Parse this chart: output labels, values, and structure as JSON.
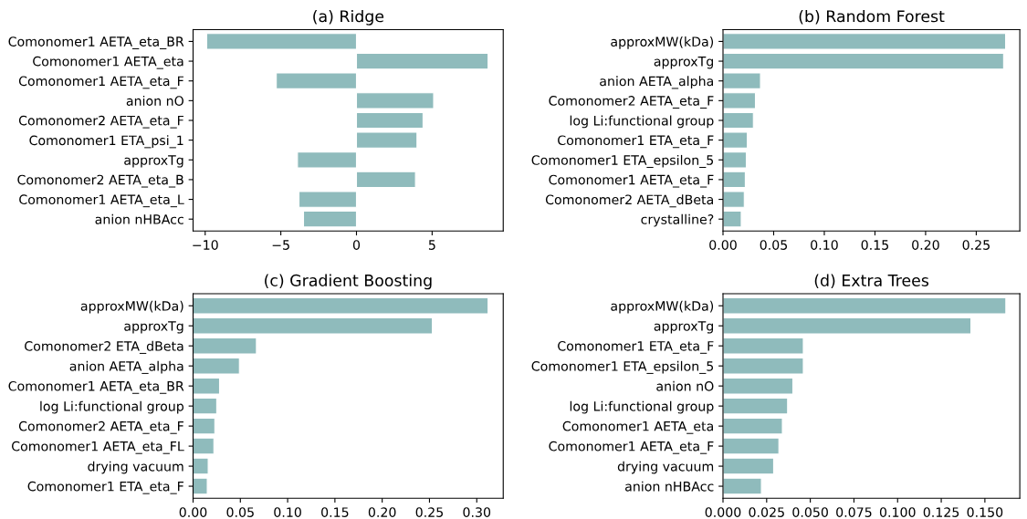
{
  "chart_data": [
    {
      "type": "bar",
      "orientation": "horizontal",
      "title": "(a) Ridge",
      "color": "#8fbbbc",
      "grid": false,
      "categories": [
        "Comonomer1 AETA_eta_BR",
        "Comonomer1 AETA_eta",
        "Comonomer1 AETA_eta_F",
        "anion nO",
        "Comonomer2 AETA_eta_F",
        "Comonomer1 ETA_psi_1",
        "approxTg",
        "Comonomer2 AETA_eta_B",
        "Comonomer1 AETA_eta_L",
        "anion nHBAcc"
      ],
      "values": [
        -9.9,
        8.7,
        -5.3,
        5.1,
        4.4,
        4.0,
        -3.9,
        3.9,
        -3.8,
        -3.5
      ],
      "xlim": [
        -10.8,
        9.7
      ],
      "xticks": [
        {
          "value": -10,
          "label": "−10"
        },
        {
          "value": -5,
          "label": "−5"
        },
        0,
        5
      ]
    },
    {
      "type": "bar",
      "orientation": "horizontal",
      "title": "(b) Random Forest",
      "color": "#8fbbbc",
      "grid": false,
      "categories": [
        "approxMW(kDa)",
        "approxTg",
        "anion AETA_alpha",
        "Comonomer2 AETA_eta_F",
        "log Li:functional group",
        "Comonomer1 ETA_eta_F",
        "Comonomer1 ETA_epsilon_5",
        "Comonomer1 AETA_eta_F",
        "Comonomer2 AETA_dBeta",
        "crystalline?"
      ],
      "values": [
        0.279,
        0.277,
        0.037,
        0.032,
        0.03,
        0.024,
        0.023,
        0.022,
        0.021,
        0.018
      ],
      "xlim": [
        0,
        0.293
      ],
      "xticks": [
        {
          "value": 0,
          "label": "0.00"
        },
        0.05,
        {
          "value": 0.1,
          "label": "0.10"
        },
        0.15,
        {
          "value": 0.2,
          "label": "0.20"
        },
        0.25
      ]
    },
    {
      "type": "bar",
      "orientation": "horizontal",
      "title": "(c) Gradient Boosting",
      "color": "#8fbbbc",
      "grid": false,
      "categories": [
        "approxMW(kDa)",
        "approxTg",
        "Comonomer2 ETA_dBeta",
        "anion AETA_alpha",
        "Comonomer1 AETA_eta_BR",
        "log Li:functional group",
        "Comonomer2 AETA_eta_F",
        "Comonomer1 AETA_eta_FL",
        "drying vacuum",
        "Comonomer1 ETA_eta_F"
      ],
      "values": [
        0.312,
        0.253,
        0.067,
        0.049,
        0.028,
        0.025,
        0.023,
        0.022,
        0.016,
        0.015
      ],
      "xlim": [
        0,
        0.328
      ],
      "xticks": [
        {
          "value": 0,
          "label": "0.00"
        },
        0.05,
        {
          "value": 0.1,
          "label": "0.10"
        },
        0.15,
        {
          "value": 0.2,
          "label": "0.20"
        },
        0.25,
        {
          "value": 0.3,
          "label": "0.30"
        }
      ]
    },
    {
      "type": "bar",
      "orientation": "horizontal",
      "title": "(d) Extra Trees",
      "color": "#8fbbbc",
      "grid": false,
      "categories": [
        "approxMW(kDa)",
        "approxTg",
        "Comonomer1 ETA_eta_F",
        "Comonomer1 ETA_epsilon_5",
        "anion nO",
        "log Li:functional group",
        "Comonomer1 AETA_eta",
        "Comonomer1 AETA_eta_F",
        "drying vacuum",
        "anion nHBAcc"
      ],
      "values": [
        0.162,
        0.142,
        0.046,
        0.046,
        0.04,
        0.037,
        0.034,
        0.032,
        0.029,
        0.022
      ],
      "xlim": [
        0,
        0.17
      ],
      "xticks": [
        {
          "value": 0,
          "label": "0.000"
        },
        0.025,
        {
          "value": 0.05,
          "label": "0.050"
        },
        0.075,
        {
          "value": 0.1,
          "label": "0.100"
        },
        0.125,
        {
          "value": 0.15,
          "label": "0.150"
        }
      ]
    }
  ]
}
